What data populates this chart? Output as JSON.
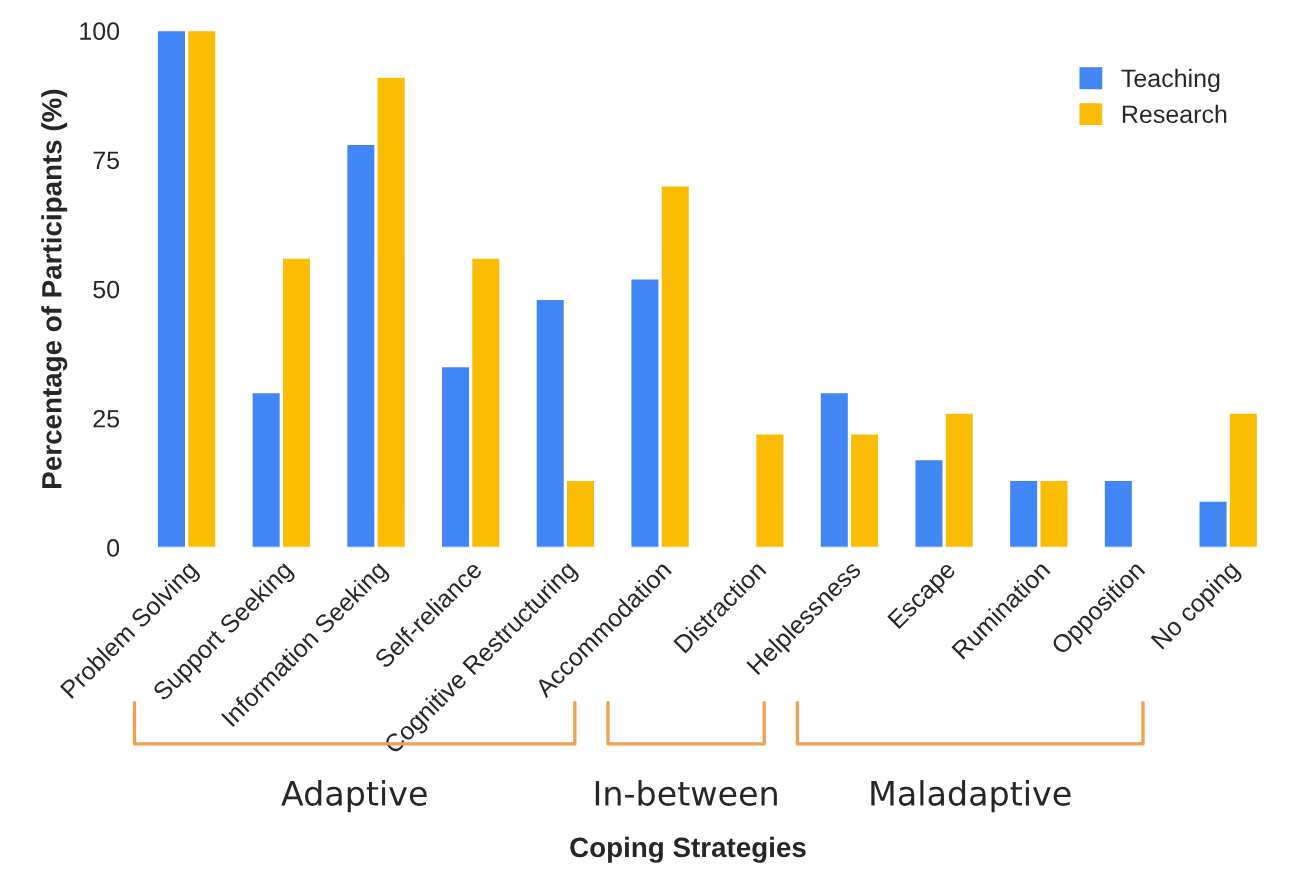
{
  "chart_data": {
    "type": "bar",
    "xlabel": "Coping Strategies",
    "ylabel": "Percentage of Participants (%)",
    "categories": [
      "Problem Solving",
      "Support Seeking",
      "Information Seeking",
      "Self-reliance",
      "Cognitive Restructuring",
      "Accommodation",
      "Distraction",
      "Helplessness",
      "Escape",
      "Rumination",
      "Opposition",
      "No coping"
    ],
    "series": [
      {
        "name": "Teaching",
        "color": "#4285f4",
        "values": [
          100,
          30,
          78,
          35,
          48,
          52,
          null,
          30,
          17,
          13,
          13,
          9
        ]
      },
      {
        "name": "Research",
        "color": "#fbbc04",
        "values": [
          100,
          56,
          91,
          56,
          13,
          70,
          22,
          22,
          26,
          13,
          null,
          26
        ]
      }
    ],
    "ylim": [
      0,
      100
    ],
    "yticks": [
      0,
      25,
      50,
      75,
      100
    ],
    "grid": false,
    "legend": "top right",
    "annotations": [
      "Adaptive",
      "In-between",
      "Maladaptive"
    ]
  }
}
